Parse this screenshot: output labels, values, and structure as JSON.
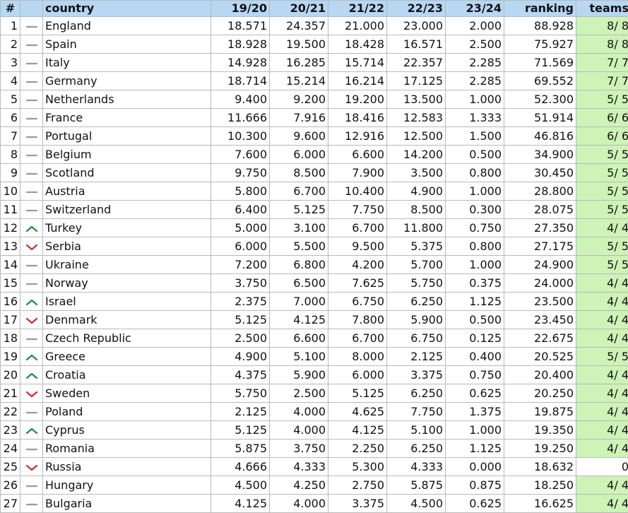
{
  "header": {
    "rank": "#",
    "trend": "",
    "country": "country",
    "s1920": "19/20",
    "s2021": "20/21",
    "s2122": "21/22",
    "s2223": "22/23",
    "s2324": "23/24",
    "ranking": "ranking",
    "teams": "teams"
  },
  "colors": {
    "header_bg": "#b7d7f3",
    "teams_bg": "#cdf3b7",
    "up": "#1d8f3a",
    "down": "#d22c2c",
    "same": "#9a9a9a"
  },
  "rows": [
    {
      "rank": "1",
      "trend": "same",
      "country": "England",
      "s1920": "18.571",
      "s2021": "24.357",
      "s2122": "21.000",
      "s2223": "23.000",
      "s2324": "2.000",
      "ranking": "88.928",
      "teams": "8/ 8",
      "teams_green": true
    },
    {
      "rank": "2",
      "trend": "same",
      "country": "Spain",
      "s1920": "18.928",
      "s2021": "19.500",
      "s2122": "18.428",
      "s2223": "16.571",
      "s2324": "2.500",
      "ranking": "75.927",
      "teams": "8/ 8",
      "teams_green": true
    },
    {
      "rank": "3",
      "trend": "same",
      "country": "Italy",
      "s1920": "14.928",
      "s2021": "16.285",
      "s2122": "15.714",
      "s2223": "22.357",
      "s2324": "2.285",
      "ranking": "71.569",
      "teams": "7/ 7",
      "teams_green": true
    },
    {
      "rank": "4",
      "trend": "same",
      "country": "Germany",
      "s1920": "18.714",
      "s2021": "15.214",
      "s2122": "16.214",
      "s2223": "17.125",
      "s2324": "2.285",
      "ranking": "69.552",
      "teams": "7/ 7",
      "teams_green": true
    },
    {
      "rank": "5",
      "trend": "same",
      "country": "Netherlands",
      "s1920": "9.400",
      "s2021": "9.200",
      "s2122": "19.200",
      "s2223": "13.500",
      "s2324": "1.000",
      "ranking": "52.300",
      "teams": "5/ 5",
      "teams_green": true
    },
    {
      "rank": "6",
      "trend": "same",
      "country": "France",
      "s1920": "11.666",
      "s2021": "7.916",
      "s2122": "18.416",
      "s2223": "12.583",
      "s2324": "1.333",
      "ranking": "51.914",
      "teams": "6/ 6",
      "teams_green": true
    },
    {
      "rank": "7",
      "trend": "same",
      "country": "Portugal",
      "s1920": "10.300",
      "s2021": "9.600",
      "s2122": "12.916",
      "s2223": "12.500",
      "s2324": "1.500",
      "ranking": "46.816",
      "teams": "6/ 6",
      "teams_green": true
    },
    {
      "rank": "8",
      "trend": "same",
      "country": "Belgium",
      "s1920": "7.600",
      "s2021": "6.000",
      "s2122": "6.600",
      "s2223": "14.200",
      "s2324": "0.500",
      "ranking": "34.900",
      "teams": "5/ 5",
      "teams_green": true
    },
    {
      "rank": "9",
      "trend": "same",
      "country": "Scotland",
      "s1920": "9.750",
      "s2021": "8.500",
      "s2122": "7.900",
      "s2223": "3.500",
      "s2324": "0.800",
      "ranking": "30.450",
      "teams": "5/ 5",
      "teams_green": true
    },
    {
      "rank": "10",
      "trend": "same",
      "country": "Austria",
      "s1920": "5.800",
      "s2021": "6.700",
      "s2122": "10.400",
      "s2223": "4.900",
      "s2324": "1.000",
      "ranking": "28.800",
      "teams": "5/ 5",
      "teams_green": true
    },
    {
      "rank": "11",
      "trend": "same",
      "country": "Switzerland",
      "s1920": "6.400",
      "s2021": "5.125",
      "s2122": "7.750",
      "s2223": "8.500",
      "s2324": "0.300",
      "ranking": "28.075",
      "teams": "5/ 5",
      "teams_green": true
    },
    {
      "rank": "12",
      "trend": "up",
      "country": "Turkey",
      "s1920": "5.000",
      "s2021": "3.100",
      "s2122": "6.700",
      "s2223": "11.800",
      "s2324": "0.750",
      "ranking": "27.350",
      "teams": "4/ 4",
      "teams_green": true
    },
    {
      "rank": "13",
      "trend": "down",
      "country": "Serbia",
      "s1920": "6.000",
      "s2021": "5.500",
      "s2122": "9.500",
      "s2223": "5.375",
      "s2324": "0.800",
      "ranking": "27.175",
      "teams": "5/ 5",
      "teams_green": true
    },
    {
      "rank": "14",
      "trend": "same",
      "country": "Ukraine",
      "s1920": "7.200",
      "s2021": "6.800",
      "s2122": "4.200",
      "s2223": "5.700",
      "s2324": "1.000",
      "ranking": "24.900",
      "teams": "5/ 5",
      "teams_green": true
    },
    {
      "rank": "15",
      "trend": "same",
      "country": "Norway",
      "s1920": "3.750",
      "s2021": "6.500",
      "s2122": "7.625",
      "s2223": "5.750",
      "s2324": "0.375",
      "ranking": "24.000",
      "teams": "4/ 4",
      "teams_green": true
    },
    {
      "rank": "16",
      "trend": "up",
      "country": "Israel",
      "s1920": "2.375",
      "s2021": "7.000",
      "s2122": "6.750",
      "s2223": "6.250",
      "s2324": "1.125",
      "ranking": "23.500",
      "teams": "4/ 4",
      "teams_green": true
    },
    {
      "rank": "17",
      "trend": "down",
      "country": "Denmark",
      "s1920": "5.125",
      "s2021": "4.125",
      "s2122": "7.800",
      "s2223": "5.900",
      "s2324": "0.500",
      "ranking": "23.450",
      "teams": "4/ 4",
      "teams_green": true
    },
    {
      "rank": "18",
      "trend": "same",
      "country": "Czech Republic",
      "s1920": "2.500",
      "s2021": "6.600",
      "s2122": "6.700",
      "s2223": "6.750",
      "s2324": "0.125",
      "ranking": "22.675",
      "teams": "4/ 4",
      "teams_green": true
    },
    {
      "rank": "19",
      "trend": "up",
      "country": "Greece",
      "s1920": "4.900",
      "s2021": "5.100",
      "s2122": "8.000",
      "s2223": "2.125",
      "s2324": "0.400",
      "ranking": "20.525",
      "teams": "5/ 5",
      "teams_green": true
    },
    {
      "rank": "20",
      "trend": "up",
      "country": "Croatia",
      "s1920": "4.375",
      "s2021": "5.900",
      "s2122": "6.000",
      "s2223": "3.375",
      "s2324": "0.750",
      "ranking": "20.400",
      "teams": "4/ 4",
      "teams_green": true
    },
    {
      "rank": "21",
      "trend": "down",
      "country": "Sweden",
      "s1920": "5.750",
      "s2021": "2.500",
      "s2122": "5.125",
      "s2223": "6.250",
      "s2324": "0.625",
      "ranking": "20.250",
      "teams": "4/ 4",
      "teams_green": true
    },
    {
      "rank": "22",
      "trend": "same",
      "country": "Poland",
      "s1920": "2.125",
      "s2021": "4.000",
      "s2122": "4.625",
      "s2223": "7.750",
      "s2324": "1.375",
      "ranking": "19.875",
      "teams": "4/ 4",
      "teams_green": true
    },
    {
      "rank": "23",
      "trend": "up",
      "country": "Cyprus",
      "s1920": "5.125",
      "s2021": "4.000",
      "s2122": "4.125",
      "s2223": "5.100",
      "s2324": "1.000",
      "ranking": "19.350",
      "teams": "4/ 4",
      "teams_green": true
    },
    {
      "rank": "24",
      "trend": "same",
      "country": "Romania",
      "s1920": "5.875",
      "s2021": "3.750",
      "s2122": "2.250",
      "s2223": "6.250",
      "s2324": "1.125",
      "ranking": "19.250",
      "teams": "4/ 4",
      "teams_green": true
    },
    {
      "rank": "25",
      "trend": "down",
      "country": "Russia",
      "s1920": "4.666",
      "s2021": "4.333",
      "s2122": "5.300",
      "s2223": "4.333",
      "s2324": "0.000",
      "ranking": "18.632",
      "teams": "0",
      "teams_green": false
    },
    {
      "rank": "26",
      "trend": "same",
      "country": "Hungary",
      "s1920": "4.500",
      "s2021": "4.250",
      "s2122": "2.750",
      "s2223": "5.875",
      "s2324": "0.875",
      "ranking": "18.250",
      "teams": "4/ 4",
      "teams_green": true
    },
    {
      "rank": "27",
      "trend": "same",
      "country": "Bulgaria",
      "s1920": "4.125",
      "s2021": "4.000",
      "s2122": "3.375",
      "s2223": "4.500",
      "s2324": "0.625",
      "ranking": "16.625",
      "teams": "4/ 4",
      "teams_green": true
    }
  ]
}
